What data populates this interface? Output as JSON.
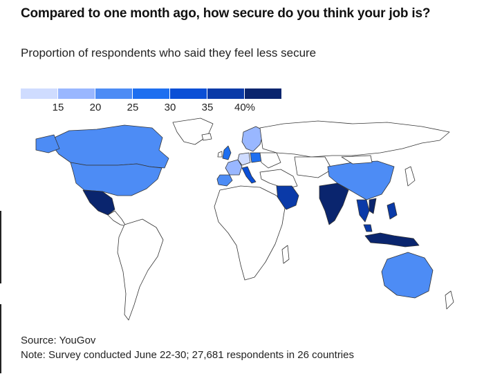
{
  "header": {
    "title": "Compared to one month ago, how secure do you think your job is?",
    "subtitle": "Proportion of respondents who said they feel less secure"
  },
  "legend": {
    "colors": [
      "#cfdcff",
      "#99b7ff",
      "#4d8cf5",
      "#1e6ff0",
      "#0b4fd6",
      "#0a3aa8",
      "#0a256e"
    ],
    "ticks": [
      "15",
      "20",
      "25",
      "30",
      "35",
      "40%"
    ]
  },
  "map": {
    "land_color": "#ffffff",
    "outline_color": "#333333",
    "highlighted_regions": [
      {
        "name": "Canada",
        "color": "#4d8cf5"
      },
      {
        "name": "United States",
        "color": "#4d8cf5"
      },
      {
        "name": "Mexico",
        "color": "#0a256e"
      },
      {
        "name": "United Kingdom",
        "color": "#1e6ff0"
      },
      {
        "name": "Spain",
        "color": "#4d8cf5"
      },
      {
        "name": "France",
        "color": "#99b7ff"
      },
      {
        "name": "Germany",
        "color": "#cfdcff"
      },
      {
        "name": "Italy",
        "color": "#0b4fd6"
      },
      {
        "name": "Poland",
        "color": "#1e6ff0"
      },
      {
        "name": "Nordics",
        "color": "#99b7ff"
      },
      {
        "name": "Saudi Arabia",
        "color": "#0a3aa8"
      },
      {
        "name": "India",
        "color": "#0a256e"
      },
      {
        "name": "China",
        "color": "#4d8cf5"
      },
      {
        "name": "Thailand",
        "color": "#0a3aa8"
      },
      {
        "name": "Vietnam",
        "color": "#0a256e"
      },
      {
        "name": "Philippines",
        "color": "#0a3aa8"
      },
      {
        "name": "Malaysia",
        "color": "#0a3aa8"
      },
      {
        "name": "Indonesia",
        "color": "#0a256e"
      },
      {
        "name": "Australia",
        "color": "#4d8cf5"
      }
    ]
  },
  "footer": {
    "source": "Source: YouGov",
    "note": "Note: Survey conducted June 22-30; 27,681 respondents in 26 countries"
  }
}
